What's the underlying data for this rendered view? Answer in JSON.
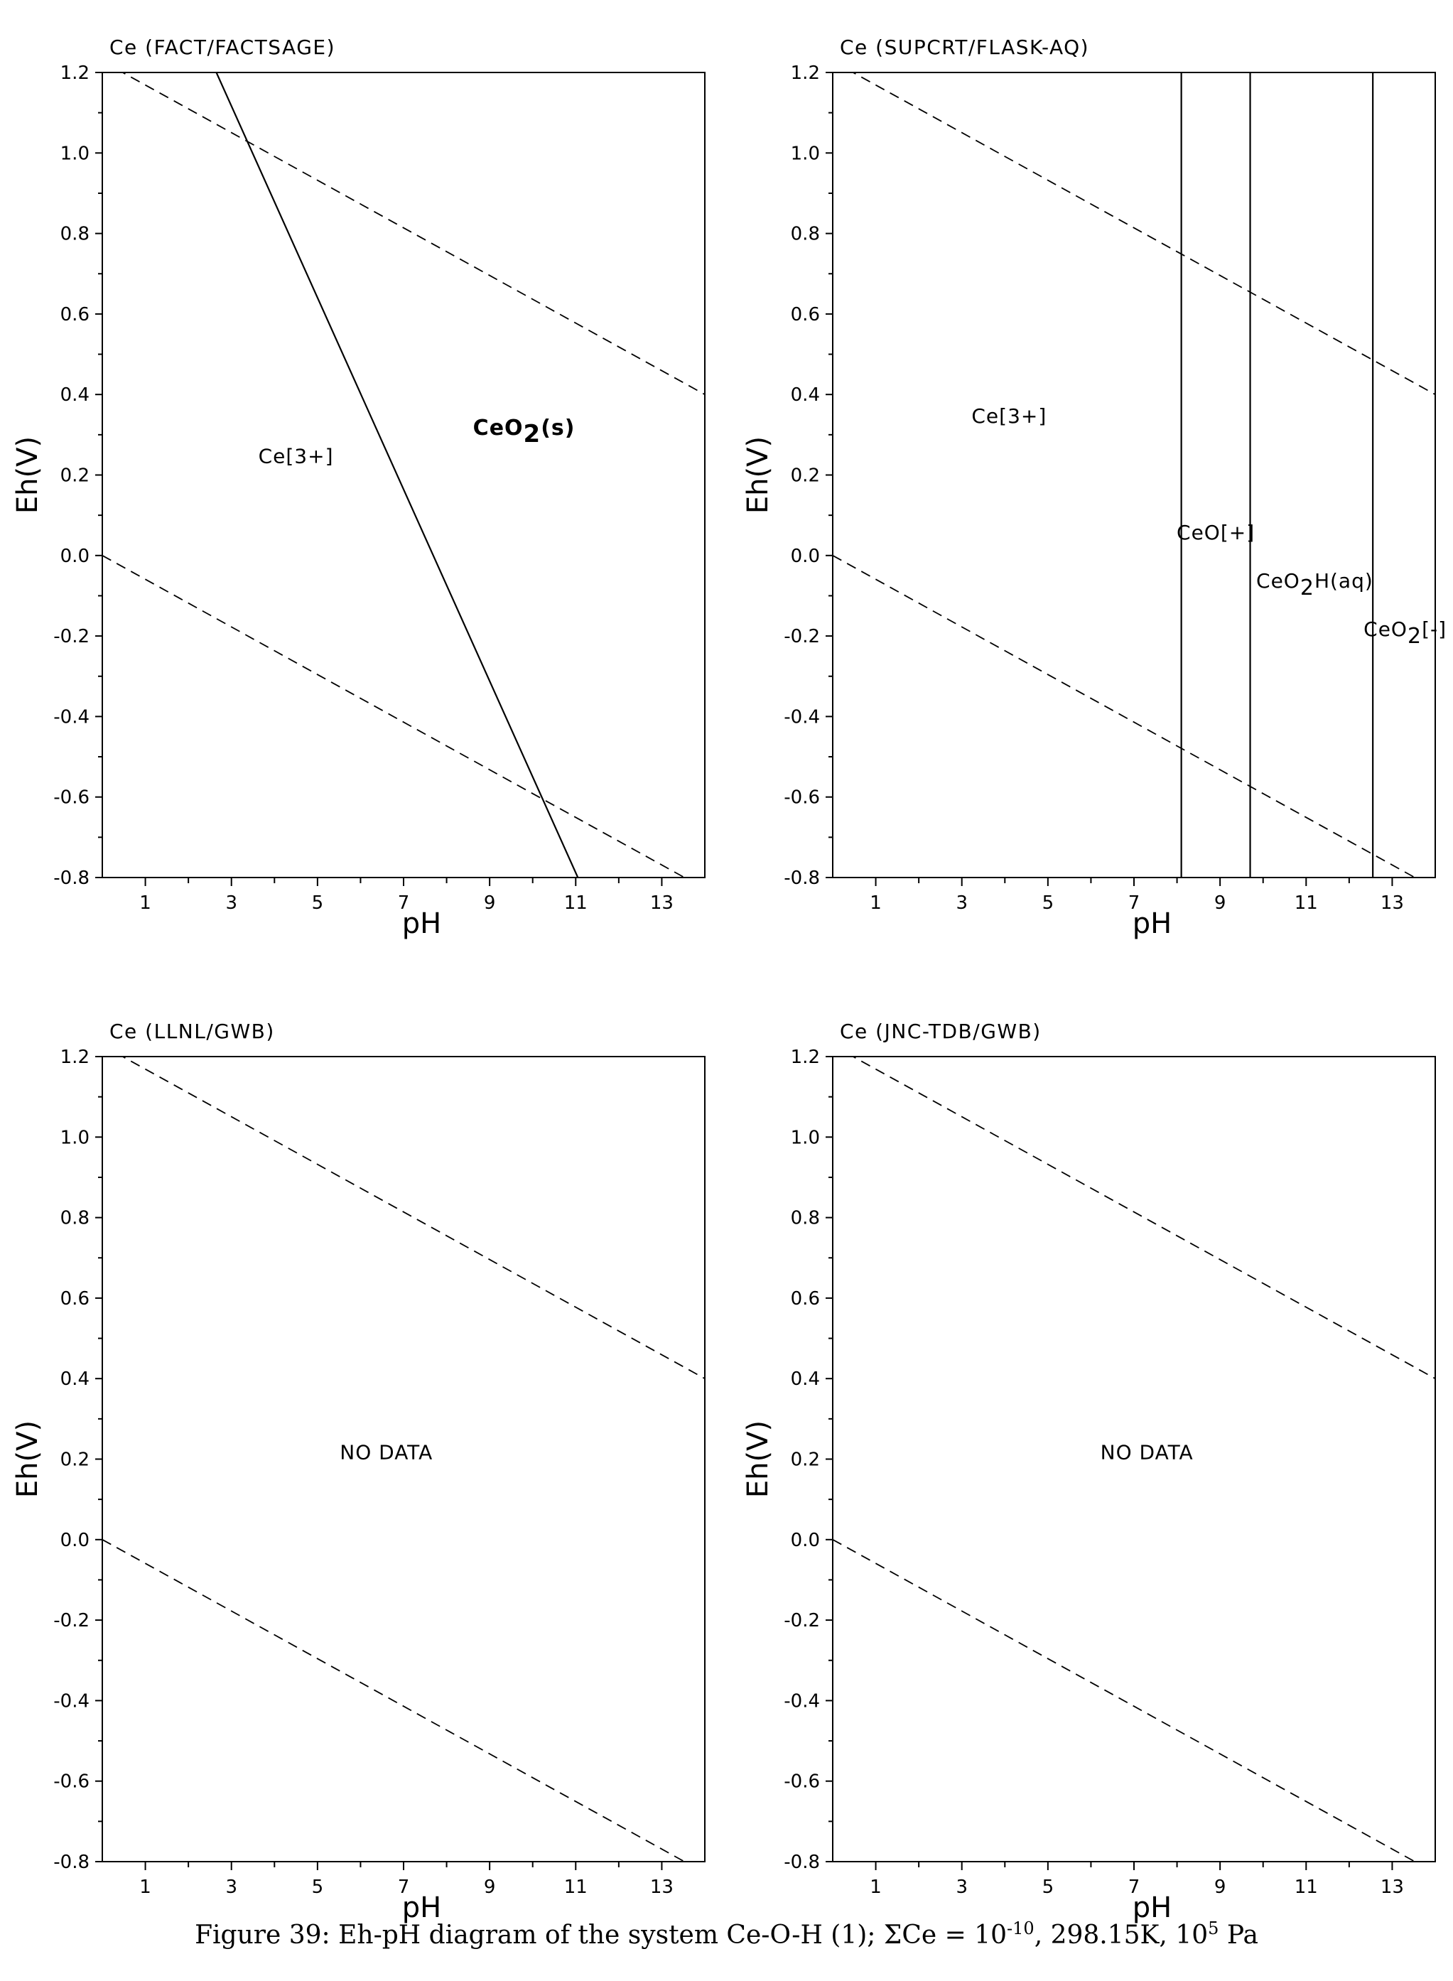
{
  "figure": {
    "caption": {
      "prefix": "Figure 39: Eh-pH diagram of the system Ce-O-H (1); ",
      "sigma": "Σ",
      "species": "Ce = 10",
      "exponent": "-10",
      "suffix": ", 298.15K, 10",
      "exp2": "5",
      "unit": " Pa"
    }
  },
  "chart_data": [
    {
      "type": "line",
      "title": "Ce (FACT/FACTSAGE)",
      "xlabel": "pH",
      "ylabel": "Eh(V)",
      "xlim": [
        0,
        14
      ],
      "ylim": [
        -0.8,
        1.2
      ],
      "xticks": [
        1,
        3,
        5,
        7,
        9,
        11,
        13
      ],
      "yticks": [
        -0.8,
        -0.6,
        -0.4,
        -0.2,
        0.0,
        0.2,
        0.4,
        0.6,
        0.8,
        1.0,
        1.2
      ],
      "ytick_labels": [
        "-0.8",
        "-0.6",
        "-0.4",
        "-0.2",
        "0.0",
        "0.2",
        "0.4",
        "0.6",
        "0.8",
        "1.0",
        "1.2"
      ],
      "reference_lines": [
        {
          "style": "dashed",
          "points": [
            [
              0,
              1.228
            ],
            [
              14,
              0.4
            ]
          ]
        },
        {
          "style": "dashed",
          "points": [
            [
              0,
              0.0
            ],
            [
              14,
              -0.828
            ]
          ]
        }
      ],
      "boundaries": [
        {
          "style": "solid",
          "points": [
            [
              2.65,
              1.2
            ],
            [
              11.05,
              -0.8
            ]
          ]
        }
      ],
      "region_labels": [
        {
          "text": "Ce[3+]",
          "x": 4.5,
          "y": 0.23,
          "bold": false
        },
        {
          "text": "CeO",
          "sub": "2",
          "tail": "(s)",
          "x": 9.8,
          "y": 0.3,
          "bold": true
        }
      ]
    },
    {
      "type": "line",
      "title": "Ce (SUPCRT/FLASK-AQ)",
      "xlabel": "pH",
      "ylabel": "Eh(V)",
      "xlim": [
        0,
        14
      ],
      "ylim": [
        -0.8,
        1.2
      ],
      "xticks": [
        1,
        3,
        5,
        7,
        9,
        11,
        13
      ],
      "yticks": [
        -0.8,
        -0.6,
        -0.4,
        -0.2,
        0.0,
        0.2,
        0.4,
        0.6,
        0.8,
        1.0,
        1.2
      ],
      "ytick_labels": [
        "-0.8",
        "-0.6",
        "-0.4",
        "-0.2",
        "0.0",
        "0.2",
        "0.4",
        "0.6",
        "0.8",
        "1.0",
        "1.2"
      ],
      "reference_lines": [
        {
          "style": "dashed",
          "points": [
            [
              0,
              1.228
            ],
            [
              14,
              0.4
            ]
          ]
        },
        {
          "style": "dashed",
          "points": [
            [
              0,
              0.0
            ],
            [
              14,
              -0.828
            ]
          ]
        }
      ],
      "boundaries": [
        {
          "style": "solid",
          "points": [
            [
              8.1,
              1.2
            ],
            [
              8.1,
              -0.8
            ]
          ]
        },
        {
          "style": "solid",
          "points": [
            [
              9.7,
              1.2
            ],
            [
              9.7,
              -0.8
            ]
          ]
        },
        {
          "style": "solid",
          "points": [
            [
              12.55,
              1.2
            ],
            [
              12.55,
              -0.8
            ]
          ]
        }
      ],
      "region_labels": [
        {
          "text": "Ce[3+]",
          "x": 4.1,
          "y": 0.33,
          "bold": false
        },
        {
          "text": "CeO[+]",
          "x": 8.9,
          "y": 0.04,
          "bold": false
        },
        {
          "text": "CeO",
          "sub": "2",
          "tail": "H(aq)",
          "x": 11.2,
          "y": -0.08,
          "bold": false
        },
        {
          "text": "CeO",
          "sub": "2",
          "tail": "[-]",
          "x": 13.3,
          "y": -0.2,
          "bold": false
        }
      ]
    },
    {
      "type": "line",
      "title": "Ce (LLNL/GWB)",
      "xlabel": "pH",
      "ylabel": "Eh(V)",
      "xlim": [
        0,
        14
      ],
      "ylim": [
        -0.8,
        1.2
      ],
      "xticks": [
        1,
        3,
        5,
        7,
        9,
        11,
        13
      ],
      "yticks": [
        -0.8,
        -0.6,
        -0.4,
        -0.2,
        0.0,
        0.2,
        0.4,
        0.6,
        0.8,
        1.0,
        1.2
      ],
      "ytick_labels": [
        "-0.8",
        "-0.6",
        "-0.4",
        "-0.2",
        "0.0",
        "0.2",
        "0.4",
        "0.6",
        "0.8",
        "1.0",
        "1.2"
      ],
      "reference_lines": [
        {
          "style": "dashed",
          "points": [
            [
              0,
              1.228
            ],
            [
              14,
              0.4
            ]
          ]
        },
        {
          "style": "dashed",
          "points": [
            [
              0,
              0.0
            ],
            [
              14,
              -0.828
            ]
          ]
        }
      ],
      "boundaries": [],
      "region_labels": [
        {
          "text": "NO DATA",
          "x": 6.6,
          "y": 0.2,
          "bold": false
        }
      ]
    },
    {
      "type": "line",
      "title": "Ce (JNC-TDB/GWB)",
      "xlabel": "pH",
      "ylabel": "Eh(V)",
      "xlim": [
        0,
        14
      ],
      "ylim": [
        -0.8,
        1.2
      ],
      "xticks": [
        1,
        3,
        5,
        7,
        9,
        11,
        13
      ],
      "yticks": [
        -0.8,
        -0.6,
        -0.4,
        -0.2,
        0.0,
        0.2,
        0.4,
        0.6,
        0.8,
        1.0,
        1.2
      ],
      "ytick_labels": [
        "-0.8",
        "-0.6",
        "-0.4",
        "-0.2",
        "0.0",
        "0.2",
        "0.4",
        "0.6",
        "0.8",
        "1.0",
        "1.2"
      ],
      "reference_lines": [
        {
          "style": "dashed",
          "points": [
            [
              0,
              1.228
            ],
            [
              14,
              0.4
            ]
          ]
        },
        {
          "style": "dashed",
          "points": [
            [
              0,
              0.0
            ],
            [
              14,
              -0.828
            ]
          ]
        }
      ],
      "boundaries": [],
      "region_labels": [
        {
          "text": "NO DATA",
          "x": 7.3,
          "y": 0.2,
          "bold": false
        }
      ]
    }
  ]
}
